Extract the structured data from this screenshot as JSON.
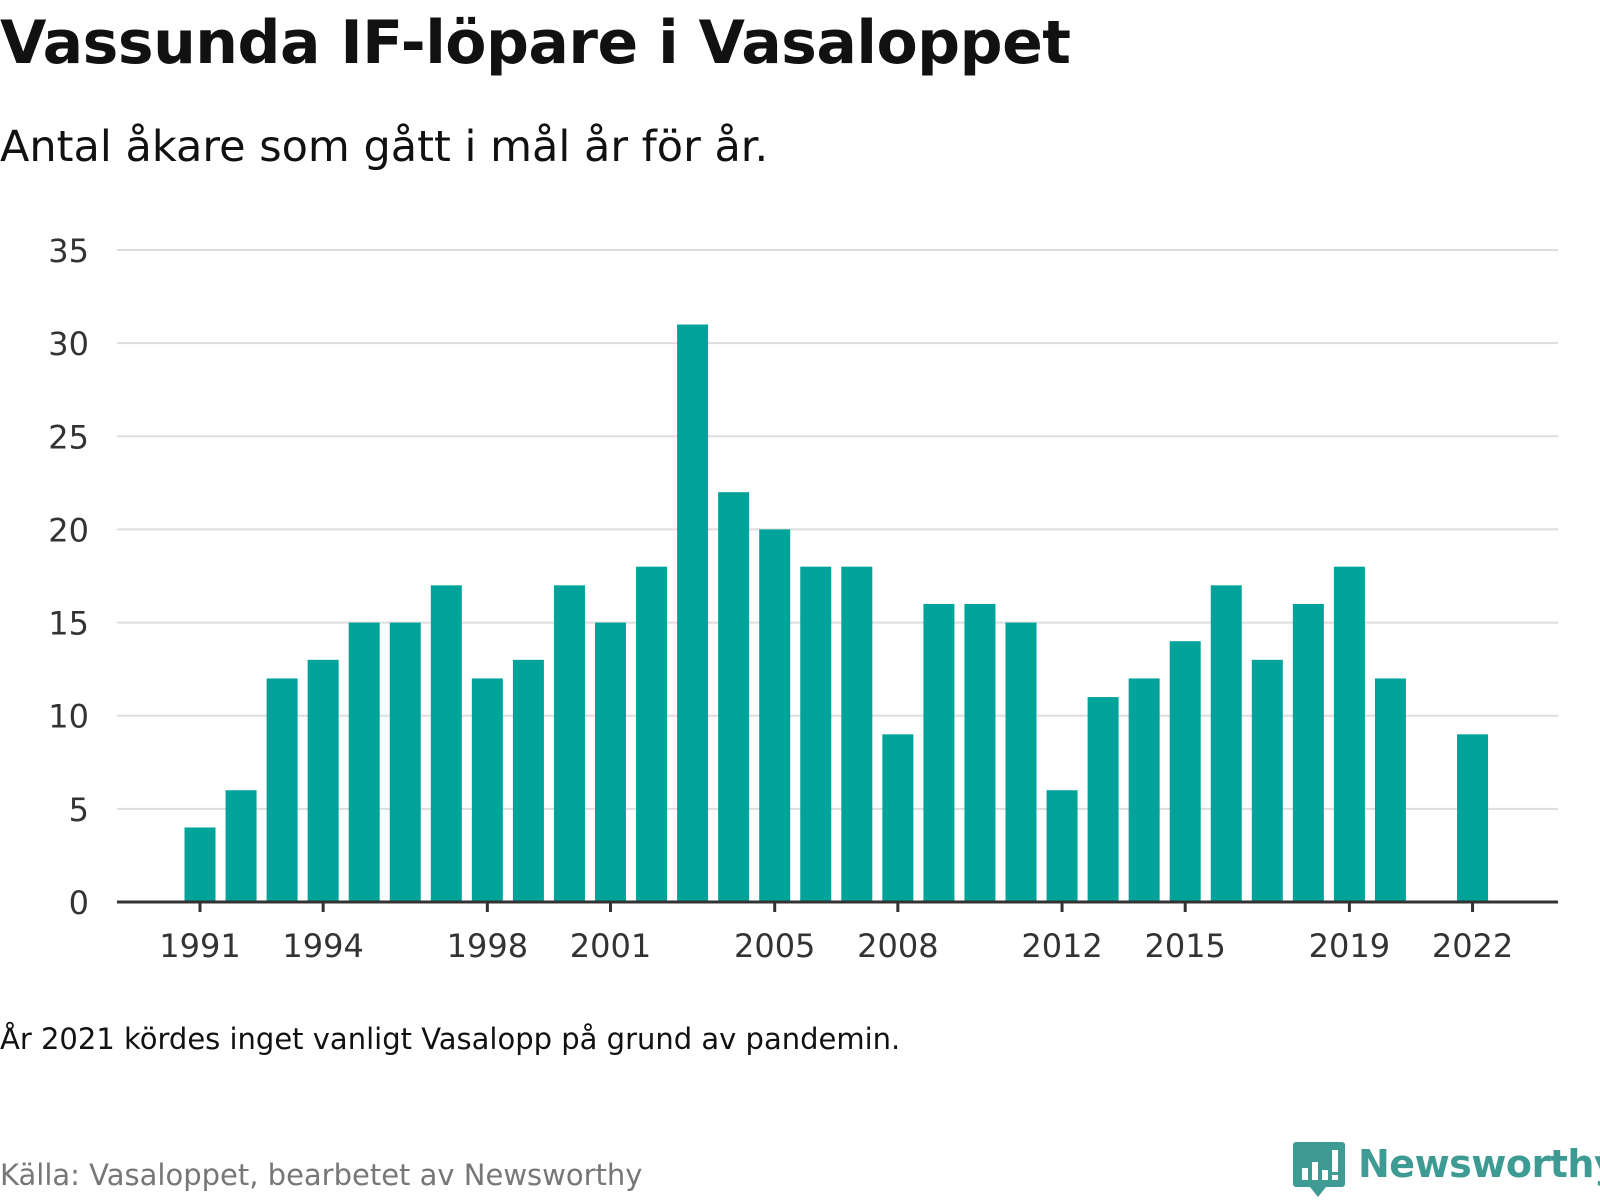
{
  "title": "Vassunda IF-löpare i Vasaloppet",
  "subtitle": "Antal åkare som gått i mål år för år.",
  "note": "År 2021 kördes inget vanligt Vasalopp på grund av pandemin.",
  "source": "Källa: Vasaloppet, bearbetet av Newsworthy",
  "brand": {
    "name": "Newsworthy",
    "icon": "newsworthy-logo-icon",
    "color": "#3d9b93"
  },
  "chart_data": {
    "type": "bar",
    "categories": [
      1991,
      1992,
      1993,
      1994,
      1995,
      1996,
      1997,
      1998,
      1999,
      2000,
      2001,
      2002,
      2003,
      2004,
      2005,
      2006,
      2007,
      2008,
      2009,
      2010,
      2011,
      2012,
      2013,
      2014,
      2015,
      2016,
      2017,
      2018,
      2019,
      2020,
      2021,
      2022
    ],
    "values": [
      4,
      6,
      12,
      13,
      15,
      15,
      17,
      12,
      13,
      17,
      15,
      18,
      31,
      22,
      20,
      18,
      18,
      9,
      16,
      16,
      15,
      6,
      11,
      12,
      14,
      17,
      13,
      16,
      18,
      12,
      null,
      9
    ],
    "x_tick_labels": [
      1991,
      1994,
      1998,
      2001,
      2005,
      2008,
      2012,
      2015,
      2019,
      2022
    ],
    "y_ticks": [
      0,
      5,
      10,
      15,
      20,
      25,
      30,
      35
    ],
    "ylim": [
      0,
      35
    ],
    "grid": true,
    "bar_color": "#00a39a",
    "grid_color": "#dddddd",
    "axis_color": "#333333"
  }
}
